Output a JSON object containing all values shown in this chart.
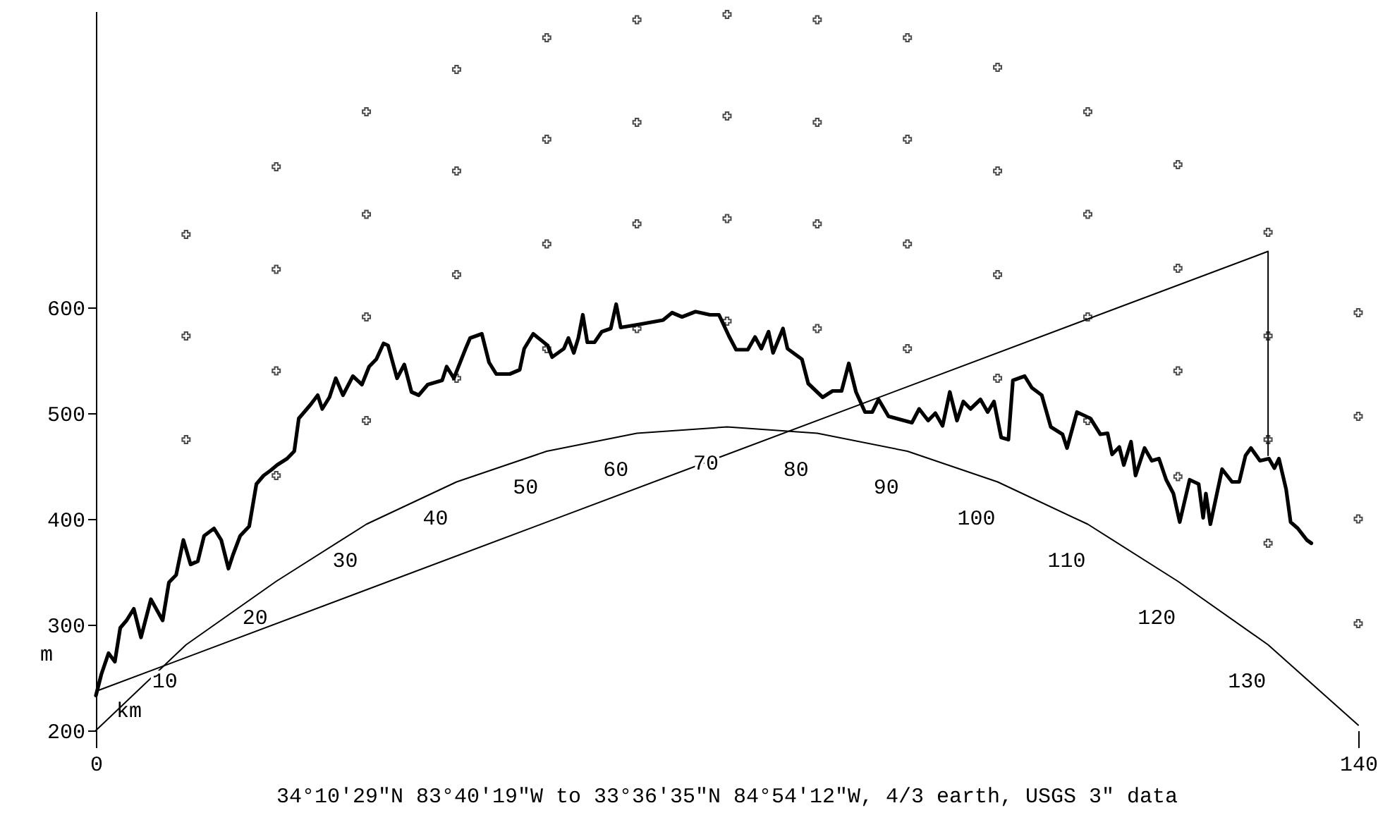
{
  "chart_data": {
    "type": "line",
    "title": "34°10′29″N  83°40′19″W to 33°36′35″N  84°54′12″W, 4/3 earth, USGS 3″ data",
    "xlabel": "km",
    "ylabel": "m",
    "xlim": [
      0,
      140
    ],
    "xticks": [
      0,
      140
    ],
    "ylim": [
      200,
      880
    ],
    "yticks": [
      200,
      300,
      400,
      500,
      600
    ],
    "grid": false,
    "line_style": "solid",
    "marker": "none",
    "series": [
      {
        "color": "#000000",
        "x": [
          0,
          0.6,
          1.4,
          2.1,
          2.7,
          3.4,
          4.2,
          5.0,
          6.1,
          7.4,
          8.1,
          8.9,
          9.7,
          10.5,
          11.3,
          12.0,
          13.1,
          13.9,
          14.7,
          15.2,
          16.0,
          17.0,
          17.8,
          18.6,
          19.4,
          20.1,
          21.2,
          22.0,
          22.5,
          23.8,
          24.6,
          25.1,
          25.9,
          26.6,
          27.4,
          28.5,
          29.5,
          30.3,
          31.1,
          31.9,
          32.4,
          33.4,
          34.2,
          35.0,
          35.8,
          36.8,
          38.4,
          38.9,
          39.7,
          41.0,
          41.5,
          42.8,
          43.6,
          44.4,
          45.9,
          47.0,
          47.5,
          48.5,
          50.1,
          50.6,
          51.9,
          52.4,
          53.0,
          53.5,
          54.0,
          54.5,
          55.3,
          56.1,
          57.1,
          57.7,
          58.2,
          60.3,
          62.9,
          63.9,
          65.0,
          66.5,
          68.1,
          69.1,
          70.2,
          71.0,
          72.3,
          73.1,
          73.8,
          74.6,
          75.1,
          76.2,
          76.7,
          78.3,
          79.0,
          80.6,
          81.7,
          82.7,
          83.5,
          84.3,
          85.3,
          86.1,
          86.8,
          87.9,
          90.5,
          91.3,
          92.3,
          93.1,
          93.9,
          94.7,
          95.5,
          96.2,
          97.0,
          98.1,
          98.9,
          99.6,
          100.4,
          101.2,
          101.7,
          103.0,
          103.8,
          104.9,
          105.9,
          107.2,
          107.7,
          108.8,
          110.3,
          111.4,
          112.2,
          112.7,
          113.5,
          114.0,
          114.8,
          115.3,
          116.3,
          117.1,
          117.9,
          118.7,
          119.5,
          120.2,
          121.3,
          122.3,
          122.8,
          123.1,
          123.6,
          124.9,
          126.0,
          126.8,
          127.5,
          128.1,
          129.1,
          130.1,
          130.7,
          131.2,
          132.0,
          132.5,
          133.3,
          134.3,
          134.8
        ],
        "values": [
          233,
          253,
          273,
          265,
          297,
          304,
          315,
          288,
          324,
          304,
          340,
          347,
          380,
          357,
          360,
          384,
          391,
          380,
          353,
          366,
          384,
          393,
          433,
          441,
          446,
          451,
          457,
          464,
          495,
          508,
          517,
          504,
          515,
          533,
          517,
          535,
          527,
          544,
          551,
          566,
          564,
          533,
          546,
          520,
          517,
          527,
          531,
          544,
          533,
          561,
          571,
          575,
          548,
          537,
          537,
          541,
          561,
          575,
          564,
          553,
          561,
          571,
          557,
          571,
          593,
          567,
          567,
          577,
          580,
          603,
          581,
          584,
          588,
          595,
          591,
          596,
          593,
          593,
          573,
          560,
          560,
          572,
          561,
          577,
          557,
          580,
          561,
          551,
          528,
          515,
          521,
          521,
          547,
          520,
          501,
          501,
          513,
          497,
          491,
          504,
          493,
          500,
          488,
          520,
          493,
          511,
          504,
          513,
          501,
          511,
          477,
          475,
          531,
          535,
          524,
          517,
          487,
          480,
          467,
          501,
          495,
          480,
          481,
          461,
          468,
          451,
          473,
          441,
          467,
          455,
          457,
          437,
          424,
          397,
          437,
          433,
          401,
          424,
          395,
          447,
          435,
          435,
          460,
          467,
          455,
          457,
          448,
          457,
          428,
          397,
          391,
          380,
          377
        ]
      },
      {
        "color": "#000000",
        "x": [
          0,
          10,
          20,
          30,
          40,
          50,
          60,
          70,
          80,
          90,
          100,
          110,
          120,
          130,
          140
        ],
        "values": [
          200,
          281,
          341,
          395,
          435,
          464,
          481,
          487,
          481,
          464,
          435,
          395,
          341,
          281,
          205
        ]
      },
      {
        "color": "#000000",
        "x": [
          0,
          130,
          130
        ],
        "values": [
          237,
          653,
          460
        ]
      },
      {
        "type": "scatter",
        "marker": "cross",
        "color": "#000000",
        "x": [
          10,
          10,
          10,
          20,
          20,
          20,
          20,
          30,
          30,
          30,
          30,
          40,
          40,
          40,
          40,
          50,
          50,
          50,
          50,
          60,
          60,
          60,
          60,
          70,
          70,
          70,
          70,
          80,
          80,
          80,
          80,
          90,
          90,
          90,
          90,
          100,
          100,
          100,
          100,
          110,
          110,
          110,
          110,
          120,
          120,
          120,
          120,
          130,
          130,
          130,
          130,
          140,
          140,
          140,
          140
        ],
        "values": [
          669,
          573,
          475,
          733,
          636,
          540,
          441,
          785,
          688,
          591,
          493,
          825,
          729,
          631,
          533,
          855,
          759,
          660,
          561,
          872,
          775,
          679,
          580,
          877,
          781,
          684,
          587,
          872,
          775,
          679,
          580,
          855,
          759,
          660,
          561,
          827,
          729,
          631,
          533,
          785,
          688,
          591,
          493,
          735,
          637,
          540,
          440,
          671,
          573,
          475,
          377,
          595,
          497,
          400,
          301
        ]
      }
    ],
    "annotations": [
      {
        "text": "10",
        "x": 10,
        "y": 281
      },
      {
        "text": "20",
        "x": 20,
        "y": 341
      },
      {
        "text": "30",
        "x": 30,
        "y": 395
      },
      {
        "text": "40",
        "x": 40,
        "y": 435
      },
      {
        "text": "50",
        "x": 50,
        "y": 464
      },
      {
        "text": "60",
        "x": 60,
        "y": 481
      },
      {
        "text": "70",
        "x": 70,
        "y": 487
      },
      {
        "text": "80",
        "x": 80,
        "y": 481
      },
      {
        "text": "90",
        "x": 90,
        "y": 464
      },
      {
        "text": "100",
        "x": 100,
        "y": 435
      },
      {
        "text": "110",
        "x": 110,
        "y": 395
      },
      {
        "text": "120",
        "x": 120,
        "y": 341
      },
      {
        "text": "130",
        "x": 130,
        "y": 281
      }
    ]
  }
}
